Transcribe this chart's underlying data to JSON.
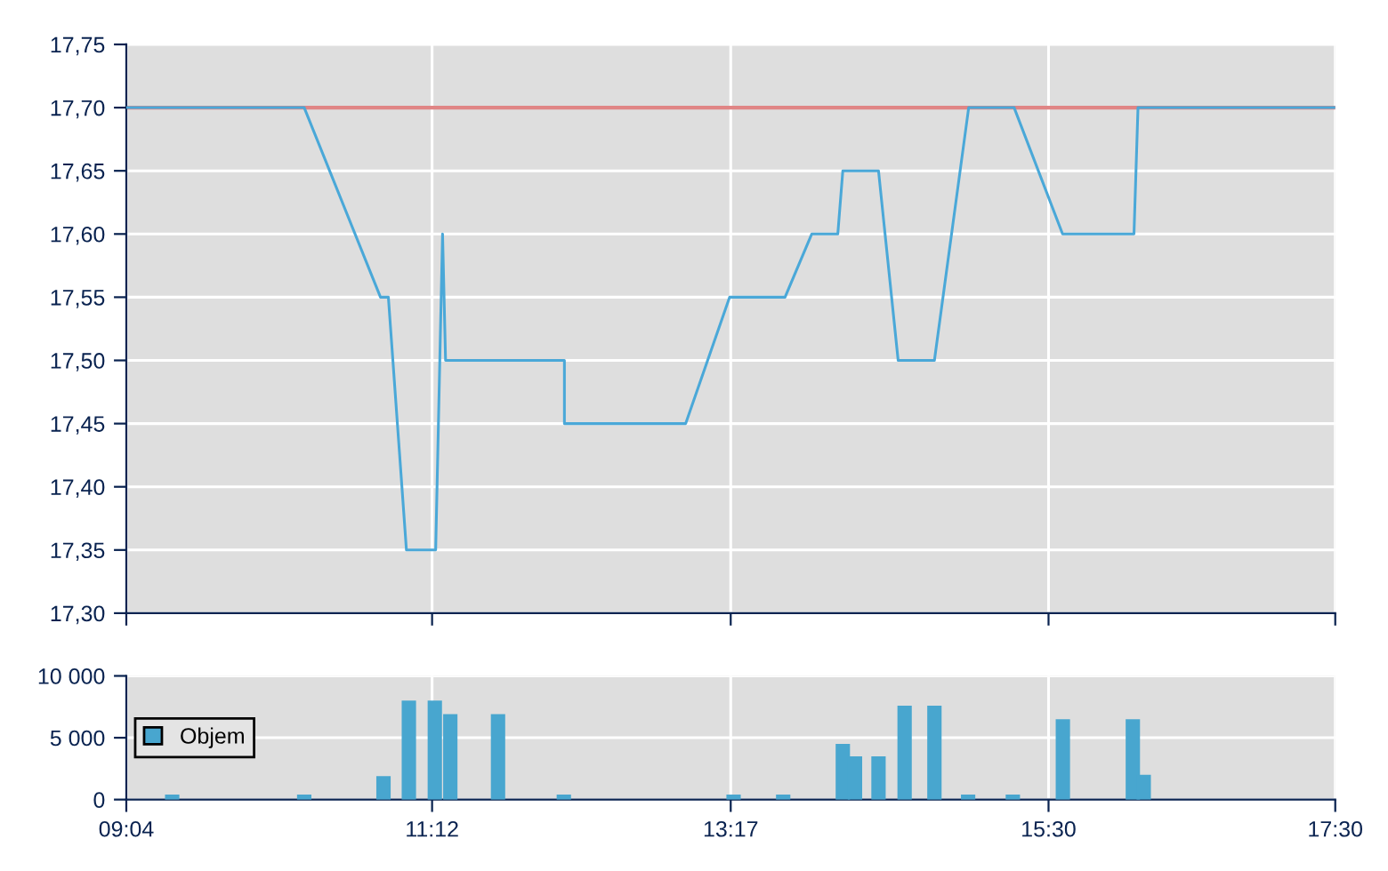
{
  "chart_data": [
    {
      "type": "line",
      "xlim": [
        9.067,
        17.5
      ],
      "xticks": [
        {
          "value": 9.067,
          "label": null
        },
        {
          "value": 11.2,
          "label": null
        },
        {
          "value": 13.283,
          "label": null
        },
        {
          "value": 15.5,
          "label": null
        },
        {
          "value": 17.5,
          "label": null
        }
      ],
      "ylim": [
        17.3,
        17.75
      ],
      "yticks": [
        {
          "value": 17.3,
          "label": "17,30"
        },
        {
          "value": 17.35,
          "label": "17,35"
        },
        {
          "value": 17.4,
          "label": "17,40"
        },
        {
          "value": 17.45,
          "label": "17,45"
        },
        {
          "value": 17.5,
          "label": "17,50"
        },
        {
          "value": 17.55,
          "label": "17,55"
        },
        {
          "value": 17.6,
          "label": "17,60"
        },
        {
          "value": 17.65,
          "label": "17,65"
        },
        {
          "value": 17.7,
          "label": "17,70"
        },
        {
          "value": 17.75,
          "label": "17,75"
        }
      ],
      "grid": true,
      "tick_labels": "y",
      "marker": "none",
      "line_style": "solid",
      "series": [
        {
          "color": "#4aa8d8",
          "x": [
            9.067,
            10.308,
            10.84,
            10.895,
            11.021,
            11.225,
            11.273,
            11.294,
            12.123,
            12.123,
            12.969,
            13.275,
            13.662,
            13.848,
            14.03,
            14.065,
            14.314,
            14.451,
            14.704,
            14.943,
            15.26,
            15.598,
            16.096,
            16.124,
            17.5
          ],
          "values": [
            17.7,
            17.7,
            17.55,
            17.55,
            17.35,
            17.35,
            17.6,
            17.5,
            17.5,
            17.45,
            17.45,
            17.55,
            17.55,
            17.6,
            17.6,
            17.65,
            17.65,
            17.5,
            17.5,
            17.7,
            17.7,
            17.6,
            17.6,
            17.7,
            17.7
          ]
        }
      ],
      "ref_lines": [
        {
          "axis": "y",
          "value": 17.7,
          "color": "#e08585",
          "line_style": "solid"
        }
      ]
    },
    {
      "type": "bar",
      "xlim": [
        9.067,
        17.5
      ],
      "xticks": [
        {
          "value": 9.067,
          "label": "09:04"
        },
        {
          "value": 11.2,
          "label": "11:12"
        },
        {
          "value": 13.283,
          "label": "13:17"
        },
        {
          "value": 15.5,
          "label": "15:30"
        },
        {
          "value": 17.5,
          "label": "17:30"
        }
      ],
      "ylim": [
        0,
        10000
      ],
      "yticks": [
        0,
        {
          "value": 5000,
          "label": "5 000"
        },
        {
          "value": 10000,
          "label": "10 000"
        }
      ],
      "grid": true,
      "legend": "left",
      "series": [
        {
          "name": "Objem",
          "color": "#48a6cf",
          "x": [
            9.387,
            10.308,
            10.861,
            11.038,
            11.219,
            11.327,
            11.66,
            12.119,
            13.303,
            13.649,
            14.065,
            14.15,
            14.314,
            14.496,
            14.704,
            14.939,
            15.251,
            15.6,
            16.088,
            16.164
          ],
          "values": [
            400,
            400,
            1900,
            8000,
            8000,
            6900,
            6900,
            400,
            400,
            400,
            4500,
            3500,
            3500,
            7600,
            7600,
            400,
            400,
            6500,
            6500,
            2000
          ]
        }
      ]
    }
  ]
}
